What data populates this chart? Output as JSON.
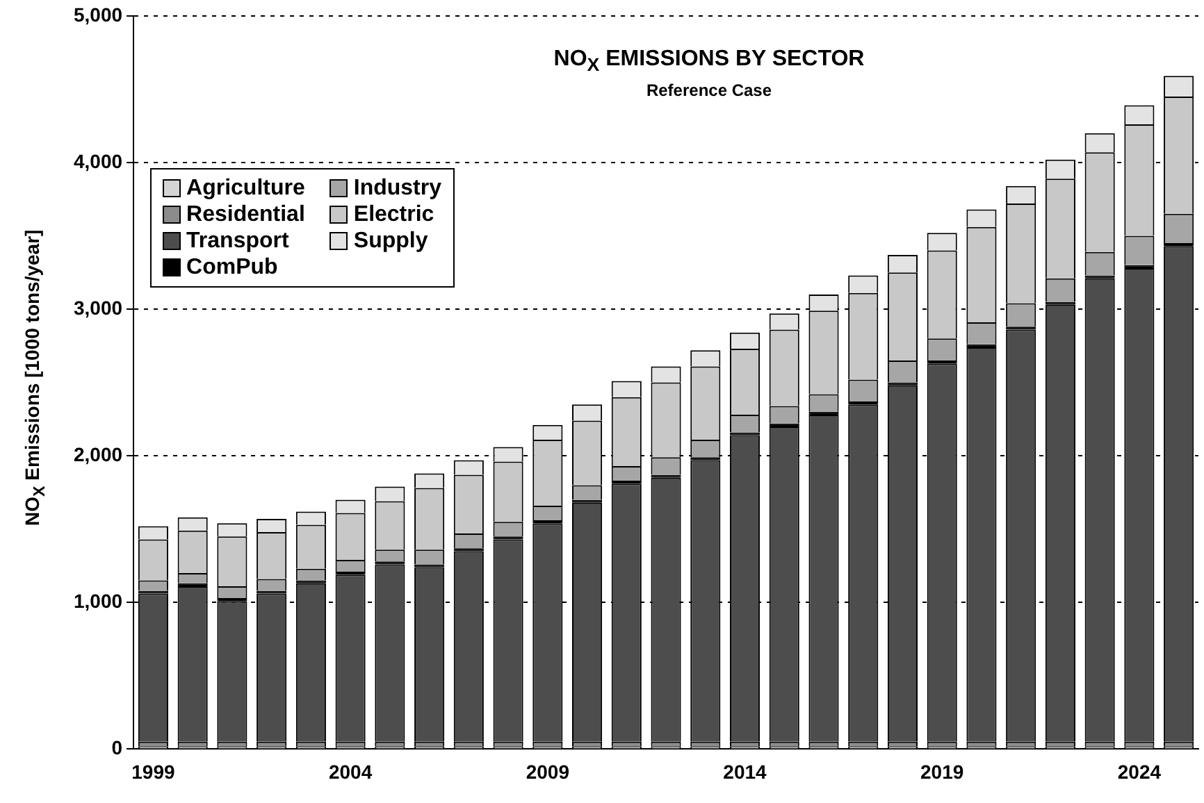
{
  "chart_data": {
    "type": "bar",
    "title": "NO$_{X}$ EMISSIONS BY SECTOR",
    "subtitle": "Reference Case",
    "ylabel": "NO$_{X}$ Emissions [1000 tons/year]",
    "categories": [
      "1999",
      null,
      null,
      null,
      null,
      "2004",
      null,
      null,
      null,
      null,
      "2009",
      null,
      null,
      null,
      null,
      "2014",
      null,
      null,
      null,
      null,
      "2019",
      null,
      null,
      null,
      null,
      "2024",
      null
    ],
    "stacked": true,
    "ylim": [
      0,
      5000
    ],
    "yticks": [
      {
        "value": 0,
        "label": "0"
      },
      {
        "value": 1000,
        "label": "1,000"
      },
      {
        "value": 2000,
        "label": "2,000"
      },
      {
        "value": 3000,
        "label": "3,000"
      },
      {
        "value": 4000,
        "label": "4,000"
      },
      {
        "value": 5000,
        "label": "5,000"
      }
    ],
    "grid": "y",
    "legend": "top left",
    "series": [
      {
        "name": "Agriculture",
        "color": "#d4d4d4",
        "values": [
          20,
          20,
          20,
          20,
          20,
          20,
          20,
          20,
          20,
          20,
          20,
          20,
          20,
          20,
          20,
          20,
          20,
          20,
          20,
          20,
          20,
          20,
          20,
          20,
          20,
          20,
          20
        ]
      },
      {
        "name": "Residential",
        "color": "#8c8c8c",
        "values": [
          30,
          30,
          30,
          30,
          30,
          30,
          30,
          30,
          30,
          30,
          30,
          30,
          30,
          30,
          30,
          30,
          30,
          30,
          30,
          30,
          30,
          30,
          30,
          30,
          30,
          30,
          30
        ]
      },
      {
        "name": "Transport",
        "color": "#4d4d4d",
        "values": [
          1010,
          1060,
          960,
          1010,
          1080,
          1140,
          1210,
          1190,
          1300,
          1380,
          1490,
          1630,
          1760,
          1800,
          1920,
          2090,
          2150,
          2230,
          2300,
          2430,
          2580,
          2690,
          2810,
          2980,
          3160,
          3230,
          3380
        ]
      },
      {
        "name": "ComPub",
        "color": "#000000",
        "values": [
          20,
          20,
          20,
          20,
          20,
          20,
          20,
          20,
          20,
          20,
          20,
          20,
          20,
          20,
          20,
          20,
          20,
          20,
          20,
          20,
          20,
          20,
          20,
          20,
          20,
          20,
          20
        ]
      },
      {
        "name": "Industry",
        "color": "#a6a6a6",
        "values": [
          70,
          70,
          80,
          80,
          80,
          80,
          80,
          100,
          100,
          100,
          100,
          100,
          100,
          120,
          120,
          120,
          120,
          120,
          150,
          150,
          150,
          150,
          160,
          160,
          160,
          200,
          200
        ]
      },
      {
        "name": "Electric",
        "color": "#c8c8c8",
        "values": [
          280,
          290,
          340,
          320,
          300,
          320,
          330,
          420,
          400,
          410,
          450,
          440,
          470,
          510,
          500,
          450,
          520,
          570,
          590,
          600,
          600,
          650,
          680,
          680,
          680,
          760,
          800
        ]
      },
      {
        "name": "Supply",
        "color": "#e3e3e3",
        "values": [
          90,
          90,
          90,
          90,
          90,
          90,
          100,
          100,
          100,
          100,
          100,
          110,
          110,
          110,
          110,
          110,
          110,
          110,
          120,
          120,
          120,
          120,
          120,
          130,
          130,
          130,
          140
        ]
      }
    ]
  }
}
